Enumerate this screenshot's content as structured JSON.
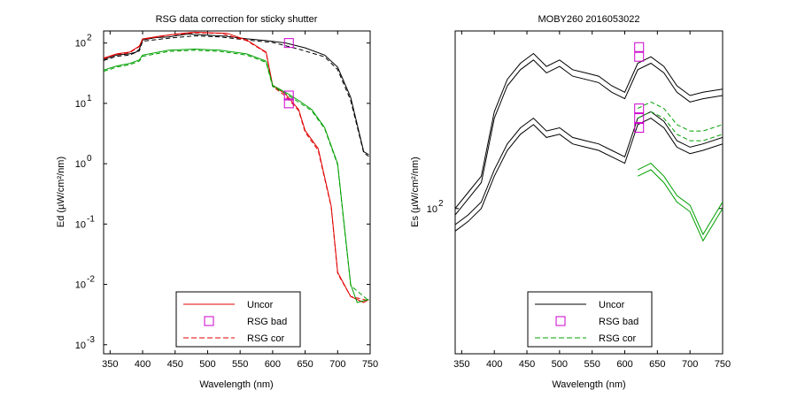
{
  "chart_data": [
    {
      "type": "line",
      "title": "RSG data correction for sticky shutter",
      "xlabel": "Wavelength (nm)",
      "ylabel": "Ed (µW/cm²/nm)",
      "xlim": [
        340,
        750
      ],
      "ylim_log10": [
        -3.15,
        2.2
      ],
      "y_scale": "log",
      "x_ticks": [
        350,
        400,
        450,
        500,
        550,
        600,
        650,
        700,
        750
      ],
      "y_ticks": [
        -3,
        -2,
        -1,
        0,
        1,
        2
      ],
      "y_tick_base": "10",
      "grid": false,
      "legend_position": "bottom-center",
      "legend": [
        {
          "label": "Uncor",
          "style": "solid-line",
          "color": "#e00000"
        },
        {
          "label": "RSG bad",
          "style": "square-marker",
          "color": "#cc00cc"
        },
        {
          "label": "RSG cor",
          "style": "dashed-line",
          "color": "#e00000"
        }
      ],
      "series": [
        {
          "color": "#000000",
          "style": "solid",
          "points": [
            [
              340,
              1.73
            ],
            [
              360,
              1.8
            ],
            [
              380,
              1.82
            ],
            [
              390,
              1.85
            ],
            [
              395,
              1.9
            ],
            [
              400,
              2.05
            ],
            [
              420,
              2.09
            ],
            [
              440,
              2.1
            ],
            [
              470,
              2.15
            ],
            [
              500,
              2.13
            ],
            [
              530,
              2.11
            ],
            [
              560,
              2.07
            ],
            [
              590,
              2.04
            ],
            [
              620,
              2.0
            ],
            [
              650,
              1.92
            ],
            [
              680,
              1.8
            ],
            [
              700,
              1.6
            ],
            [
              720,
              1.1
            ],
            [
              740,
              0.2
            ],
            [
              748,
              0.15
            ]
          ]
        },
        {
          "color": "#000000",
          "style": "dashed",
          "points": [
            [
              340,
              1.71
            ],
            [
              360,
              1.78
            ],
            [
              380,
              1.8
            ],
            [
              395,
              1.87
            ],
            [
              400,
              2.03
            ],
            [
              440,
              2.08
            ],
            [
              480,
              2.12
            ],
            [
              520,
              2.1
            ],
            [
              560,
              2.05
            ],
            [
              600,
              2.01
            ],
            [
              640,
              1.9
            ],
            [
              680,
              1.77
            ],
            [
              700,
              1.56
            ],
            [
              720,
              1.05
            ],
            [
              740,
              0.18
            ],
            [
              748,
              0.12
            ]
          ]
        },
        {
          "color": "#e00000",
          "style": "solid",
          "points": [
            [
              340,
              1.75
            ],
            [
              360,
              1.82
            ],
            [
              380,
              1.85
            ],
            [
              395,
              1.95
            ],
            [
              400,
              2.07
            ],
            [
              430,
              2.12
            ],
            [
              460,
              2.16
            ],
            [
              480,
              2.18
            ],
            [
              500,
              2.17
            ],
            [
              530,
              2.16
            ],
            [
              560,
              2.05
            ],
            [
              590,
              1.85
            ],
            [
              600,
              1.3
            ],
            [
              620,
              1.15
            ],
            [
              640,
              0.9
            ],
            [
              650,
              0.55
            ],
            [
              670,
              0.25
            ],
            [
              690,
              -0.7
            ],
            [
              700,
              -1.8
            ],
            [
              710,
              -2.0
            ],
            [
              720,
              -2.2
            ],
            [
              740,
              -2.3
            ],
            [
              748,
              -2.25
            ]
          ]
        },
        {
          "color": "#e00000",
          "style": "dashed",
          "points": [
            [
              340,
              1.74
            ],
            [
              360,
              1.81
            ],
            [
              380,
              1.84
            ],
            [
              395,
              1.94
            ],
            [
              400,
              2.06
            ],
            [
              440,
              2.13
            ],
            [
              480,
              2.17
            ],
            [
              520,
              2.16
            ],
            [
              560,
              2.04
            ],
            [
              590,
              1.84
            ],
            [
              600,
              1.28
            ],
            [
              620,
              1.12
            ],
            [
              640,
              0.88
            ],
            [
              650,
              0.52
            ],
            [
              670,
              0.22
            ],
            [
              690,
              -0.72
            ],
            [
              700,
              -1.82
            ],
            [
              720,
              -2.2
            ],
            [
              748,
              -2.27
            ]
          ]
        },
        {
          "color": "#00a000",
          "style": "solid",
          "points": [
            [
              340,
              1.55
            ],
            [
              360,
              1.62
            ],
            [
              380,
              1.66
            ],
            [
              395,
              1.72
            ],
            [
              400,
              1.8
            ],
            [
              440,
              1.88
            ],
            [
              480,
              1.9
            ],
            [
              520,
              1.88
            ],
            [
              560,
              1.82
            ],
            [
              590,
              1.7
            ],
            [
              600,
              1.3
            ],
            [
              620,
              1.18
            ],
            [
              640,
              1.05
            ],
            [
              660,
              0.9
            ],
            [
              680,
              0.6
            ],
            [
              700,
              0.0
            ],
            [
              710,
              -1.0
            ],
            [
              720,
              -2.0
            ],
            [
              730,
              -2.3
            ],
            [
              748,
              -2.25
            ]
          ]
        },
        {
          "color": "#00a000",
          "style": "dashed",
          "points": [
            [
              340,
              1.53
            ],
            [
              360,
              1.6
            ],
            [
              380,
              1.64
            ],
            [
              395,
              1.7
            ],
            [
              400,
              1.78
            ],
            [
              440,
              1.86
            ],
            [
              480,
              1.88
            ],
            [
              520,
              1.86
            ],
            [
              560,
              1.8
            ],
            [
              590,
              1.68
            ],
            [
              600,
              1.28
            ],
            [
              620,
              1.16
            ],
            [
              640,
              1.02
            ],
            [
              660,
              0.88
            ],
            [
              680,
              0.58
            ],
            [
              700,
              -0.02
            ],
            [
              710,
              -1.02
            ],
            [
              720,
              -2.02
            ],
            [
              748,
              -2.27
            ]
          ]
        }
      ],
      "markers": [
        [
          625,
          2.0
        ],
        [
          625,
          1.13
        ],
        [
          625,
          1.0
        ]
      ]
    },
    {
      "type": "line",
      "title": "MOBY260  2016053022",
      "xlabel": "Wavelength (nm)",
      "ylabel": "Es (µW/cm²/nm)",
      "xlim": [
        340,
        750
      ],
      "ylim_log10": [
        1.55,
        2.55
      ],
      "y_scale": "log",
      "x_ticks": [
        350,
        400,
        450,
        500,
        550,
        600,
        650,
        700,
        750
      ],
      "y_ticks": [
        2
      ],
      "y_tick_base": "10",
      "grid": false,
      "legend_position": "bottom-center",
      "legend": [
        {
          "label": "Uncor",
          "style": "solid-line",
          "color": "#000000"
        },
        {
          "label": "RSG bad",
          "style": "square-marker",
          "color": "#cc00cc"
        },
        {
          "label": "RSG cor",
          "style": "dashed-line",
          "color": "#00a000"
        }
      ],
      "series": [
        {
          "color": "#000000",
          "style": "solid",
          "points": [
            [
              340,
              2.0
            ],
            [
              360,
              2.05
            ],
            [
              380,
              2.1
            ],
            [
              400,
              2.3
            ],
            [
              420,
              2.4
            ],
            [
              440,
              2.45
            ],
            [
              460,
              2.48
            ],
            [
              480,
              2.44
            ],
            [
              500,
              2.46
            ],
            [
              520,
              2.43
            ],
            [
              540,
              2.42
            ],
            [
              560,
              2.41
            ],
            [
              580,
              2.38
            ],
            [
              600,
              2.36
            ],
            [
              620,
              2.45
            ],
            [
              640,
              2.47
            ],
            [
              660,
              2.44
            ],
            [
              680,
              2.38
            ],
            [
              700,
              2.35
            ],
            [
              720,
              2.36
            ],
            [
              750,
              2.37
            ]
          ]
        },
        {
          "color": "#000000",
          "style": "solid",
          "points": [
            [
              340,
              1.98
            ],
            [
              360,
              2.03
            ],
            [
              380,
              2.08
            ],
            [
              400,
              2.28
            ],
            [
              420,
              2.38
            ],
            [
              440,
              2.43
            ],
            [
              460,
              2.46
            ],
            [
              480,
              2.42
            ],
            [
              500,
              2.44
            ],
            [
              520,
              2.41
            ],
            [
              540,
              2.4
            ],
            [
              560,
              2.39
            ],
            [
              580,
              2.36
            ],
            [
              600,
              2.34
            ],
            [
              620,
              2.43
            ],
            [
              640,
              2.45
            ],
            [
              660,
              2.42
            ],
            [
              680,
              2.36
            ],
            [
              700,
              2.33
            ],
            [
              720,
              2.34
            ],
            [
              750,
              2.35
            ]
          ]
        },
        {
          "color": "#000000",
          "style": "solid",
          "points": [
            [
              340,
              1.95
            ],
            [
              360,
              1.98
            ],
            [
              380,
              2.02
            ],
            [
              400,
              2.12
            ],
            [
              420,
              2.2
            ],
            [
              440,
              2.25
            ],
            [
              460,
              2.28
            ],
            [
              480,
              2.24
            ],
            [
              500,
              2.25
            ],
            [
              520,
              2.22
            ],
            [
              540,
              2.21
            ],
            [
              560,
              2.2
            ],
            [
              580,
              2.18
            ],
            [
              600,
              2.16
            ],
            [
              620,
              2.28
            ],
            [
              640,
              2.3
            ],
            [
              660,
              2.27
            ],
            [
              680,
              2.21
            ],
            [
              700,
              2.19
            ],
            [
              720,
              2.2
            ],
            [
              750,
              2.22
            ]
          ]
        },
        {
          "color": "#000000",
          "style": "solid",
          "points": [
            [
              340,
              1.93
            ],
            [
              360,
              1.96
            ],
            [
              380,
              2.0
            ],
            [
              400,
              2.1
            ],
            [
              420,
              2.18
            ],
            [
              440,
              2.23
            ],
            [
              460,
              2.26
            ],
            [
              480,
              2.22
            ],
            [
              500,
              2.23
            ],
            [
              520,
              2.2
            ],
            [
              540,
              2.19
            ],
            [
              560,
              2.18
            ],
            [
              580,
              2.16
            ],
            [
              600,
              2.14
            ],
            [
              620,
              2.26
            ],
            [
              640,
              2.28
            ],
            [
              660,
              2.25
            ],
            [
              680,
              2.19
            ],
            [
              700,
              2.17
            ],
            [
              720,
              2.18
            ],
            [
              750,
              2.2
            ]
          ]
        },
        {
          "color": "#00a000",
          "style": "dashed",
          "points": [
            [
              620,
              2.31
            ],
            [
              640,
              2.33
            ],
            [
              660,
              2.31
            ],
            [
              680,
              2.26
            ],
            [
              700,
              2.24
            ],
            [
              720,
              2.24
            ],
            [
              750,
              2.26
            ]
          ]
        },
        {
          "color": "#00a000",
          "style": "dashed",
          "points": [
            [
              620,
              2.28
            ],
            [
              640,
              2.3
            ],
            [
              660,
              2.28
            ],
            [
              680,
              2.23
            ],
            [
              700,
              2.21
            ],
            [
              720,
              2.21
            ],
            [
              750,
              2.23
            ]
          ]
        },
        {
          "color": "#00a000",
          "style": "solid",
          "points": [
            [
              620,
              2.12
            ],
            [
              640,
              2.14
            ],
            [
              660,
              2.1
            ],
            [
              680,
              2.04
            ],
            [
              700,
              2.01
            ],
            [
              720,
              1.92
            ],
            [
              750,
              2.02
            ]
          ]
        },
        {
          "color": "#00a000",
          "style": "solid",
          "points": [
            [
              620,
              2.1
            ],
            [
              640,
              2.12
            ],
            [
              660,
              2.08
            ],
            [
              680,
              2.02
            ],
            [
              700,
              1.99
            ],
            [
              720,
              1.9
            ],
            [
              750,
              2.0
            ]
          ]
        }
      ],
      "markers": [
        [
          622,
          2.5
        ],
        [
          622,
          2.47
        ],
        [
          622,
          2.31
        ],
        [
          622,
          2.28
        ],
        [
          622,
          2.25
        ]
      ]
    }
  ]
}
